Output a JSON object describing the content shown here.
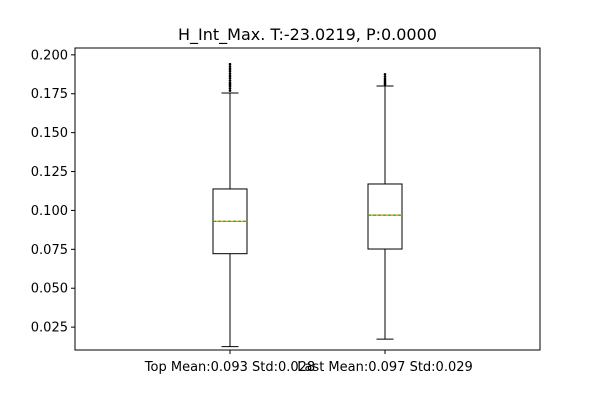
{
  "chart_data": {
    "type": "box",
    "title": "H_Int_Max. T:-23.0219, P:0.0000",
    "xlabel": "",
    "ylabel": "",
    "categories": [
      "Top Mean:0.093 Std:0.028",
      "Last Mean:0.097 Std:0.029"
    ],
    "ylim": [
      0.0103,
      0.2044
    ],
    "yticks": [
      "0.025",
      "0.050",
      "0.075",
      "0.100",
      "0.125",
      "0.150",
      "0.175",
      "0.200"
    ],
    "boxes": [
      {
        "whisker_low": 0.0125,
        "q1": 0.0722,
        "median": 0.093,
        "mean": 0.093,
        "q3": 0.1138,
        "whisker_high": 0.1755,
        "outliers": [
          0.177,
          0.1785,
          0.18,
          0.181,
          0.182,
          0.1835,
          0.185,
          0.1865,
          0.188,
          0.1895,
          0.191,
          0.1925,
          0.194
        ]
      },
      {
        "whisker_low": 0.0173,
        "q1": 0.0752,
        "median": 0.097,
        "mean": 0.097,
        "q3": 0.117,
        "whisker_high": 0.18,
        "outliers": [
          0.181,
          0.182,
          0.1832,
          0.1845,
          0.186,
          0.1875
        ]
      }
    ],
    "colors": {
      "box": "#000000",
      "median": "#ff7f0e",
      "mean": "#2ca02c",
      "background": "#ffffff"
    },
    "grid": false,
    "legend": "none"
  }
}
